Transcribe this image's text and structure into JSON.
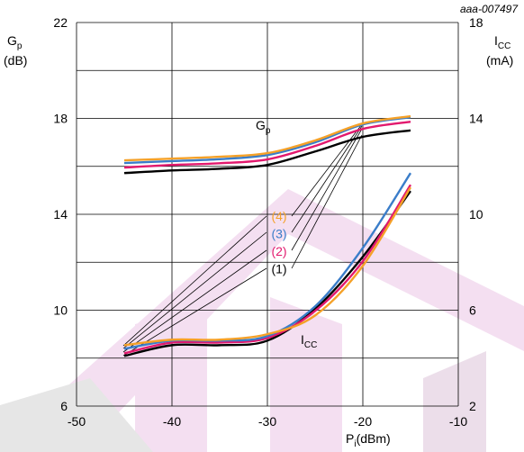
{
  "chart_data": {
    "type": "line",
    "id_label": "aaa-007497",
    "ylabel": {
      "main": "G",
      "sub": "p",
      "unit": "(dB)"
    },
    "y2label": {
      "main": "I",
      "sub": "CC",
      "unit": "(mA)"
    },
    "xlabel": {
      "main": "P",
      "sub": "i",
      "unit": "(dBm)"
    },
    "gp_annotation": {
      "main": "G",
      "sub": "p"
    },
    "icc_annotation": {
      "main": "I",
      "sub": "CC"
    },
    "x": [
      -45,
      -40,
      -35,
      -30,
      -25,
      -20,
      -15
    ],
    "xlim": [
      -50,
      -10
    ],
    "xticks": [
      -50,
      -40,
      -30,
      -20,
      -10
    ],
    "ylim": [
      6,
      22
    ],
    "yticks": [
      6,
      10,
      14,
      18,
      22
    ],
    "y2lim": [
      2,
      18
    ],
    "y2ticks": [
      2,
      6,
      10,
      14,
      18
    ],
    "grid": true,
    "series": [
      {
        "name": "(1)",
        "color": "#000000",
        "values": [
          15.72,
          15.83,
          15.9,
          16.06,
          16.62,
          17.23,
          17.5
        ]
      },
      {
        "name": "(2)",
        "color": "#e2196e",
        "values": [
          15.95,
          16.06,
          16.13,
          16.29,
          16.85,
          17.56,
          17.86
        ]
      },
      {
        "name": "(3)",
        "color": "#3a7dc9",
        "values": [
          16.14,
          16.22,
          16.3,
          16.47,
          17.0,
          17.75,
          18.05
        ]
      },
      {
        "name": "(4)",
        "color": "#f5a128",
        "values": [
          16.25,
          16.32,
          16.4,
          16.55,
          17.08,
          17.79,
          18.09
        ]
      },
      {
        "axis": "y2",
        "color": "#000000",
        "values": [
          4.09,
          4.54,
          4.54,
          4.73,
          6.05,
          8.23,
          10.97
        ]
      },
      {
        "axis": "y2",
        "color": "#e2196e",
        "values": [
          4.2,
          4.65,
          4.65,
          4.84,
          5.97,
          8.04,
          11.23
        ]
      },
      {
        "axis": "y2",
        "color": "#3a7dc9",
        "values": [
          4.39,
          4.73,
          4.73,
          4.92,
          6.16,
          8.6,
          11.72
        ]
      },
      {
        "axis": "y2",
        "color": "#f5a128",
        "values": [
          4.54,
          4.77,
          4.77,
          5.0,
          5.78,
          7.85,
          11.12
        ]
      }
    ]
  }
}
